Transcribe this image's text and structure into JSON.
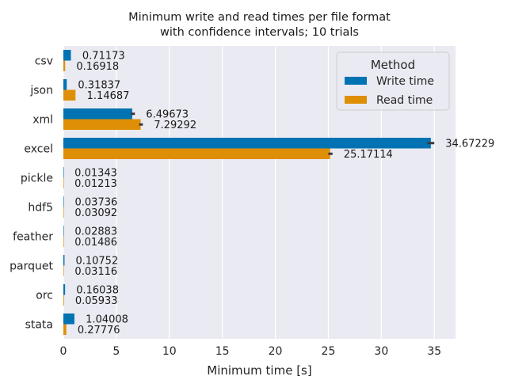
{
  "chart_data": {
    "type": "bar",
    "orientation": "horizontal",
    "title": "Minimum write and read times per file format\nwith confidence intervals; 10 trials",
    "xlabel": "Minimum time [s]",
    "ylabel": "",
    "xlim": [
      0,
      37
    ],
    "xticks": [
      0,
      5,
      10,
      15,
      20,
      25,
      30,
      35
    ],
    "categories": [
      "csv",
      "json",
      "xml",
      "excel",
      "pickle",
      "hdf5",
      "feather",
      "parquet",
      "orc",
      "stata"
    ],
    "series": [
      {
        "name": "Write time",
        "color": "#0173b2",
        "values": [
          0.71173,
          0.31837,
          6.49673,
          34.67229,
          0.01343,
          0.03736,
          0.02883,
          0.10752,
          0.16038,
          1.04008
        ],
        "labels": [
          "0.71173",
          "0.31837",
          "6.49673",
          "34.67229",
          "0.01343",
          "0.03736",
          "0.02883",
          "0.10752",
          "0.16038",
          "1.04008"
        ],
        "ci": [
          [
            0.69,
            0.74
          ],
          [
            0.31,
            0.33
          ],
          [
            6.35,
            6.75
          ],
          [
            34.35,
            35.0
          ],
          [
            0.013,
            0.014
          ],
          [
            0.036,
            0.038
          ],
          [
            0.028,
            0.03
          ],
          [
            0.105,
            0.11
          ],
          [
            0.155,
            0.165
          ],
          [
            1.02,
            1.06
          ]
        ]
      },
      {
        "name": "Read time",
        "color": "#de8f05",
        "values": [
          0.16918,
          1.14687,
          7.29292,
          25.17114,
          0.01213,
          0.03092,
          0.01486,
          0.03116,
          0.05933,
          0.27776
        ],
        "labels": [
          "0.16918",
          "1.14687",
          "7.29292",
          "25.17114",
          "0.01213",
          "0.03092",
          "0.01486",
          "0.03116",
          "0.05933",
          "0.27776"
        ],
        "ci": [
          [
            0.16,
            0.18
          ],
          [
            1.12,
            1.17
          ],
          [
            7.15,
            7.5
          ],
          [
            25.0,
            25.4
          ],
          [
            0.012,
            0.0125
          ],
          [
            0.03,
            0.032
          ],
          [
            0.0145,
            0.0152
          ],
          [
            0.03,
            0.032
          ],
          [
            0.058,
            0.061
          ],
          [
            0.27,
            0.285
          ]
        ]
      }
    ],
    "grid": true,
    "legend": {
      "title": "Method",
      "placement": "top-right"
    },
    "background": "#eaeaf2"
  }
}
